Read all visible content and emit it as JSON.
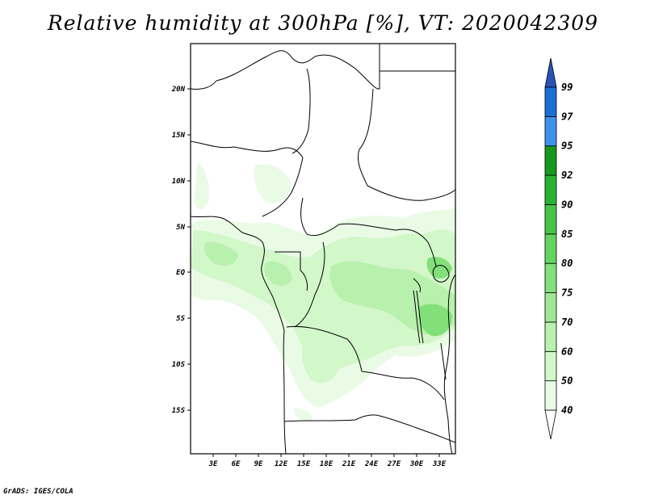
{
  "title": "Relative humidity at 300hPa [%], VT: 2020042309",
  "credit": "GrADS: IGES/COLA",
  "variable": "Relative humidity",
  "level": "300hPa",
  "units": "%",
  "valid_time": "2020042309",
  "axes": {
    "lat_labels": [
      "20N",
      "15N",
      "10N",
      "5N",
      "EQ",
      "5S",
      "10S",
      "15S"
    ],
    "lon_labels": [
      "3E",
      "6E",
      "9E",
      "12E",
      "15E",
      "18E",
      "21E",
      "24E",
      "27E",
      "30E",
      "33E"
    ]
  },
  "colorbar": {
    "levels": [
      "40",
      "50",
      "60",
      "70",
      "75",
      "80",
      "85",
      "90",
      "92",
      "95",
      "97",
      "99"
    ],
    "colors": [
      "#ffffff",
      "#e9fbe5",
      "#d2f7c9",
      "#b8f0ad",
      "#9ee894",
      "#82df79",
      "#63d45f",
      "#46c448",
      "#2ab232",
      "#16981f",
      "#3d93ea",
      "#1b6ed6",
      "#2854b8"
    ]
  },
  "shading_color": "#c8f2bd",
  "coastline_color": "#000000"
}
